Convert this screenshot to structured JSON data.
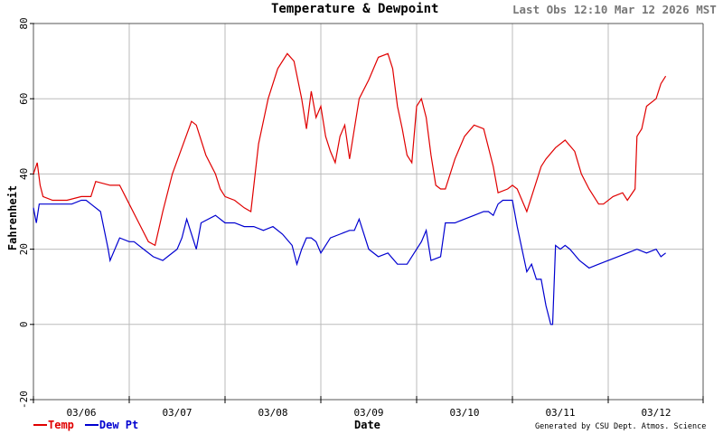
{
  "header": {
    "title": "Temperature & Dewpoint",
    "last_obs": "Last Obs 12:10 Mar 12 2026 MST"
  },
  "footer": {
    "credit": "Generated by CSU Dept. Atmos. Science"
  },
  "legend": [
    {
      "label": "Temp",
      "color": "#e00000"
    },
    {
      "label": "Dew Pt",
      "color": "#0000d0"
    }
  ],
  "colors": {
    "temp": "#e00000",
    "dewpt": "#0000d0",
    "grid": "#bbbbbb",
    "axis": "#555555"
  },
  "chart_data": {
    "type": "line",
    "title": "Temperature & Dewpoint",
    "xlabel": "Date",
    "ylabel": "Fahrenheit",
    "ylim": [
      -20,
      80
    ],
    "yticks": [
      -20,
      0,
      20,
      40,
      60,
      80
    ],
    "xlim_days": [
      0,
      7
    ],
    "xtick_labels": [
      "03/06",
      "03/07",
      "03/08",
      "03/09",
      "03/10",
      "03/11",
      "03/12"
    ],
    "xtick_label_positions_days": [
      0.5,
      1.5,
      2.5,
      3.5,
      4.5,
      5.5,
      6.5
    ],
    "grid": true,
    "legend_position": "bottom-left",
    "series": [
      {
        "name": "Temp",
        "x_days": [
          0.0,
          0.04,
          0.07,
          0.1,
          0.2,
          0.35,
          0.5,
          0.6,
          0.65,
          0.8,
          0.9,
          1.0,
          1.1,
          1.2,
          1.27,
          1.35,
          1.45,
          1.55,
          1.65,
          1.7,
          1.8,
          1.9,
          1.95,
          2.0,
          2.1,
          2.2,
          2.27,
          2.35,
          2.45,
          2.55,
          2.65,
          2.72,
          2.8,
          2.85,
          2.9,
          2.95,
          3.0,
          3.05,
          3.1,
          3.15,
          3.2,
          3.25,
          3.3,
          3.4,
          3.5,
          3.6,
          3.7,
          3.75,
          3.8,
          3.85,
          3.9,
          3.95,
          4.0,
          4.05,
          4.1,
          4.15,
          4.2,
          4.25,
          4.3,
          4.4,
          4.5,
          4.6,
          4.7,
          4.8,
          4.85,
          4.95,
          5.0,
          5.05,
          5.1,
          5.15,
          5.2,
          5.3,
          5.35,
          5.45,
          5.55,
          5.65,
          5.72,
          5.8,
          5.9,
          5.95,
          6.05,
          6.15,
          6.2,
          6.28,
          6.3,
          6.35,
          6.4,
          6.5,
          6.55,
          6.6
        ],
        "y_values": [
          40,
          43,
          37,
          34,
          33,
          33,
          34,
          34,
          38,
          37,
          37,
          32,
          27,
          22,
          21,
          30,
          40,
          47,
          54,
          53,
          45,
          40,
          36,
          34,
          33,
          31,
          30,
          48,
          60,
          68,
          72,
          70,
          60,
          52,
          62,
          55,
          58,
          50,
          46,
          43,
          50,
          53,
          44,
          60,
          65,
          71,
          72,
          68,
          58,
          52,
          45,
          43,
          58,
          60,
          55,
          45,
          37,
          36,
          36,
          44,
          50,
          53,
          52,
          42,
          35,
          36,
          37,
          36,
          33,
          30,
          34,
          42,
          44,
          47,
          49,
          46,
          40,
          36,
          32,
          32,
          34,
          35,
          33,
          36,
          50,
          52,
          58,
          60,
          64,
          66
        ]
      },
      {
        "name": "Dew Pt",
        "x_days": [
          0.0,
          0.03,
          0.06,
          0.1,
          0.2,
          0.4,
          0.5,
          0.55,
          0.6,
          0.7,
          0.78,
          0.8,
          0.9,
          1.0,
          1.05,
          1.15,
          1.25,
          1.35,
          1.4,
          1.5,
          1.55,
          1.6,
          1.7,
          1.75,
          1.9,
          2.0,
          2.1,
          2.2,
          2.3,
          2.4,
          2.5,
          2.6,
          2.7,
          2.75,
          2.8,
          2.85,
          2.9,
          2.95,
          3.0,
          3.1,
          3.2,
          3.3,
          3.35,
          3.4,
          3.5,
          3.6,
          3.7,
          3.8,
          3.9,
          4.0,
          4.05,
          4.1,
          4.15,
          4.25,
          4.3,
          4.4,
          4.5,
          4.6,
          4.7,
          4.75,
          4.8,
          4.85,
          4.9,
          4.95,
          5.0,
          5.05,
          5.1,
          5.15,
          5.2,
          5.25,
          5.3,
          5.35,
          5.4,
          5.42,
          5.45,
          5.5,
          5.55,
          5.6,
          5.7,
          5.8,
          5.9,
          6.0,
          6.1,
          6.2,
          6.3,
          6.4,
          6.5,
          6.55,
          6.6
        ],
        "y_values": [
          31,
          27,
          32,
          32,
          32,
          32,
          33,
          33,
          32,
          30,
          20,
          17,
          23,
          22,
          22,
          20,
          18,
          17,
          18,
          20,
          23,
          28,
          20,
          27,
          29,
          27,
          27,
          26,
          26,
          25,
          26,
          24,
          21,
          16,
          20,
          23,
          23,
          22,
          19,
          23,
          24,
          25,
          25,
          28,
          20,
          18,
          19,
          16,
          16,
          20,
          22,
          25,
          17,
          18,
          27,
          27,
          28,
          29,
          30,
          30,
          29,
          32,
          33,
          33,
          33,
          26,
          20,
          14,
          16,
          12,
          12,
          5,
          0,
          0,
          21,
          20,
          21,
          20,
          17,
          15,
          16,
          17,
          18,
          19,
          20,
          19,
          20,
          18,
          19
        ]
      }
    ]
  }
}
